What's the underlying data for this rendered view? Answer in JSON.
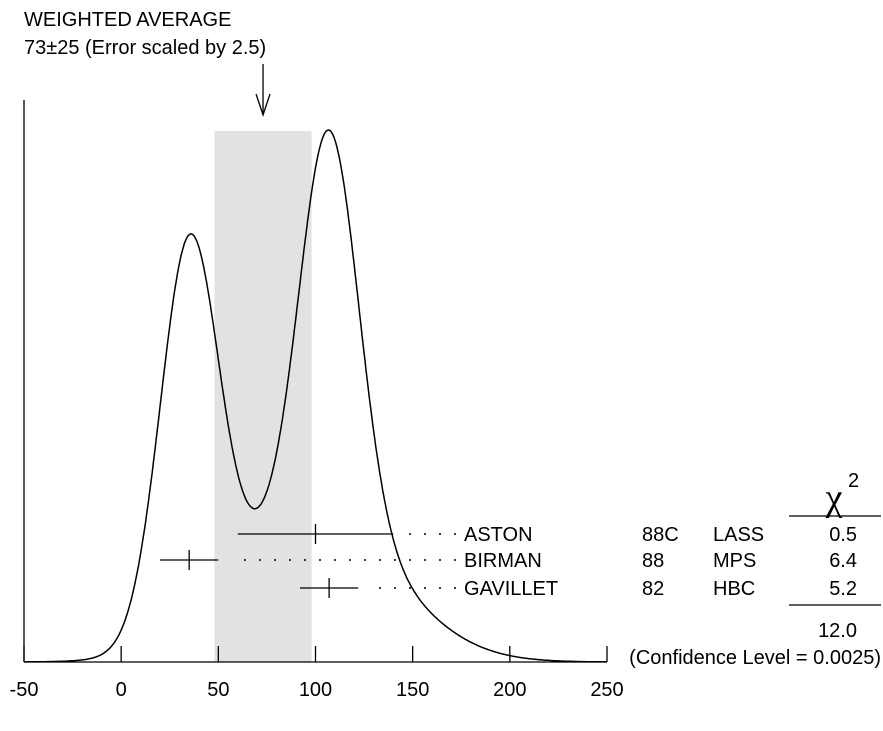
{
  "chart_data": {
    "type": "ideogram",
    "title": "WEIGHTED AVERAGE",
    "subtitle": "73±25 (Error scaled by 2.5)",
    "weighted_average": {
      "value": 73,
      "error": 25
    },
    "band": [
      48,
      98
    ],
    "xlim": [
      -50,
      250
    ],
    "x_ticks": [
      -50,
      0,
      50,
      100,
      150,
      200,
      250
    ],
    "x_tick_labels": [
      "-50",
      "0",
      "50",
      "100",
      "150",
      "200",
      "250"
    ],
    "measurements": [
      {
        "name": "ASTON",
        "year": "88C",
        "experiment": "LASS",
        "value": 100,
        "error": 40,
        "chi2": "0.5"
      },
      {
        "name": "BIRMAN",
        "year": "88",
        "experiment": "MPS",
        "value": 35,
        "error": 15,
        "chi2": "6.4"
      },
      {
        "name": "GAVILLET",
        "year": "82",
        "experiment": "HBC",
        "value": 107,
        "error": 15,
        "chi2": "5.2"
      }
    ],
    "chi2_header": "χ",
    "chi2_header_sup": "2",
    "chi2_total": "12.0",
    "confidence_level": "(Confidence Level = 0.0025)"
  }
}
